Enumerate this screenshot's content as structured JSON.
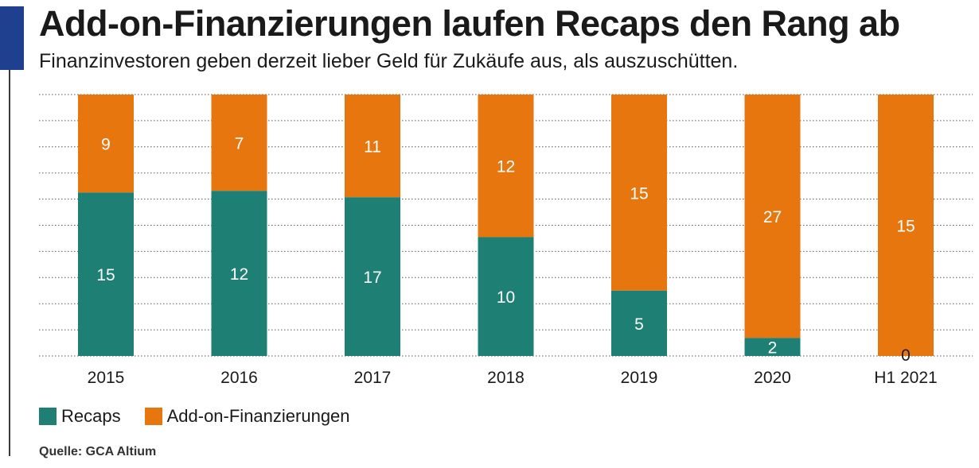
{
  "header": {
    "title": "Add-on-Finanzierungen laufen Recaps den Rang ab",
    "subtitle": "Finanzinvestoren geben derzeit lieber Geld für Zukäufe aus, als auszuschütten."
  },
  "colors": {
    "accent": "#1f3f8f",
    "recaps": "#1e8074",
    "addon": "#e8760f",
    "grid": "#555555"
  },
  "chart_data": {
    "type": "bar",
    "stacked": true,
    "normalized": true,
    "categories": [
      "2015",
      "2016",
      "2017",
      "2018",
      "2019",
      "2020",
      "H1 2021"
    ],
    "series": [
      {
        "name": "Recaps",
        "values": [
          15,
          12,
          17,
          10,
          5,
          2,
          0
        ]
      },
      {
        "name": "Add-on-Finanzierungen",
        "values": [
          9,
          7,
          11,
          12,
          15,
          27,
          15
        ]
      }
    ],
    "title": "Add-on-Finanzierungen laufen Recaps den Rang ab",
    "subtitle": "Finanzinvestoren geben derzeit lieber Geld für Zukäufe aus, als auszuschütten.",
    "xlabel": "",
    "ylabel": "",
    "grid": "dotted horizontal",
    "legend": "bottom-left"
  },
  "legend": {
    "items": [
      {
        "label": "Recaps"
      },
      {
        "label": "Add-on-Finanzierungen"
      }
    ]
  },
  "source": "Quelle: GCA Altium"
}
